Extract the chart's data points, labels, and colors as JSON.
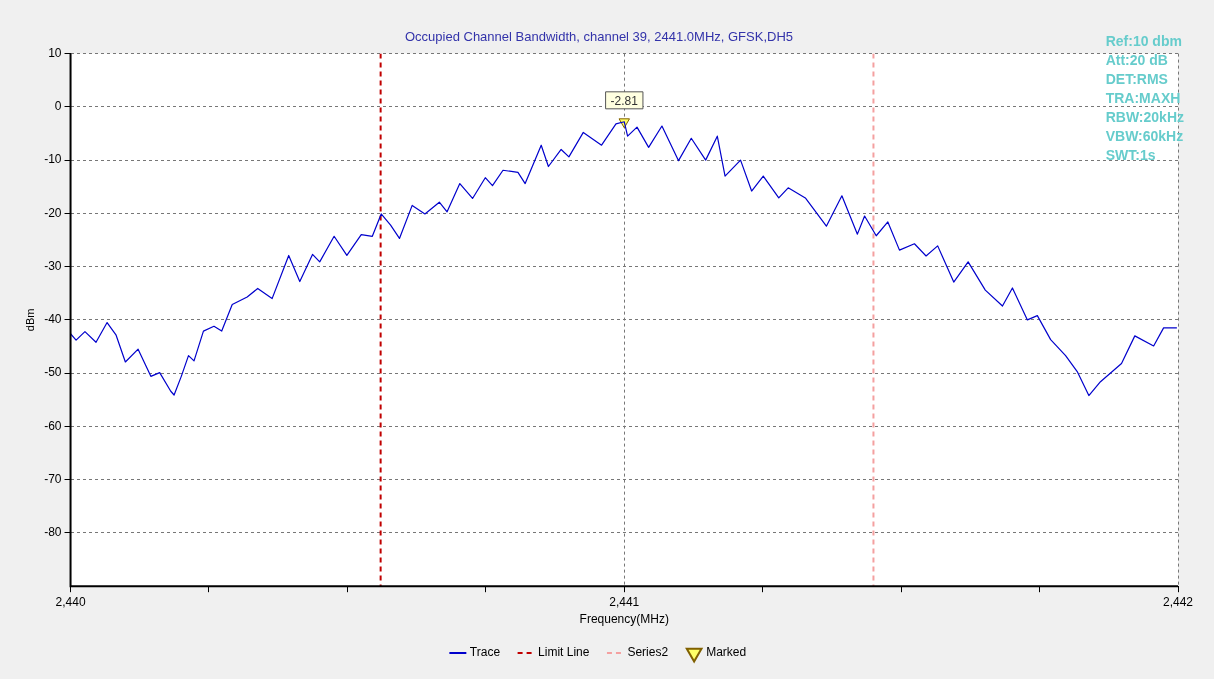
{
  "chart_data": {
    "type": "line",
    "title": "Occupied Channel Bandwidth, channel 39, 2441.0MHz, GFSK,DH5",
    "xlabel": "Frequency(MHz)",
    "ylabel": "dBm",
    "annotations": [
      "Ref:10 dbm",
      "Att:20 dB",
      "DET:RMS",
      "TRA:MAXH",
      "RBW:20kHz",
      "VBW:60kHz",
      "SWT:1s"
    ],
    "xlim": [
      2440,
      2442
    ],
    "ylim": [
      -90,
      10
    ],
    "xticks": [
      {
        "value": 2440,
        "label": "2,440"
      },
      {
        "value": 2440.25,
        "label": null
      },
      {
        "value": 2440.5,
        "label": null
      },
      {
        "value": 2440.75,
        "label": null
      },
      {
        "value": 2441,
        "label": "2,441"
      },
      {
        "value": 2441.25,
        "label": null
      },
      {
        "value": 2441.5,
        "label": null
      },
      {
        "value": 2441.75,
        "label": null
      },
      {
        "value": 2442,
        "label": "2,442"
      }
    ],
    "yticks": [
      10,
      0,
      -10,
      -20,
      -30,
      -40,
      -50,
      -60,
      -70,
      -80
    ],
    "grid": true,
    "legend": "bottom",
    "series": [
      {
        "name": "Trace",
        "type": "line",
        "color": "#0000cc",
        "line_style": "solid",
        "marker": "none",
        "x": [
          2440.0,
          2440.01,
          2440.026,
          2440.046,
          2440.066,
          2440.082,
          2440.099,
          2440.122,
          2440.145,
          2440.161,
          2440.181,
          2440.187,
          2440.2,
          2440.213,
          2440.223,
          2440.24,
          2440.259,
          2440.273,
          2440.292,
          2440.319,
          2440.338,
          2440.364,
          2440.394,
          2440.414,
          2440.437,
          2440.45,
          2440.476,
          2440.499,
          2440.525,
          2440.545,
          2440.561,
          2440.578,
          2440.594,
          2440.617,
          2440.64,
          2440.666,
          2440.68,
          2440.703,
          2440.726,
          2440.749,
          2440.762,
          2440.781,
          2440.808,
          2440.821,
          2440.85,
          2440.863,
          2440.886,
          2440.9,
          2440.926,
          2440.959,
          2440.985,
          2441.0,
          2441.006,
          2441.023,
          2441.044,
          2441.068,
          2441.098,
          2441.121,
          2441.147,
          2441.168,
          2441.182,
          2441.21,
          2441.23,
          2441.251,
          2441.279,
          2441.296,
          2441.327,
          2441.365,
          2441.393,
          2441.421,
          2441.434,
          2441.455,
          2441.476,
          2441.497,
          2441.524,
          2441.545,
          2441.566,
          2441.595,
          2441.621,
          2441.652,
          2441.683,
          2441.701,
          2441.728,
          2441.746,
          2441.77,
          2441.797,
          2441.818,
          2441.839,
          2441.86,
          2441.898,
          2441.922,
          2441.956,
          2441.974,
          2441.998
        ],
        "values": [
          -42.6,
          -43.8,
          -42.2,
          -44.2,
          -40.5,
          -42.8,
          -47.9,
          -45.5,
          -50.6,
          -49.9,
          -53.4,
          -54.1,
          -50.6,
          -46.7,
          -47.7,
          -42.1,
          -41.2,
          -42.1,
          -37.1,
          -35.7,
          -34.1,
          -36.0,
          -27.9,
          -32.8,
          -27.7,
          -29.1,
          -24.3,
          -27.9,
          -24.0,
          -24.3,
          -20.1,
          -22.2,
          -24.7,
          -18.5,
          -20.1,
          -17.9,
          -19.7,
          -14.4,
          -17.2,
          -13.3,
          -14.8,
          -11.9,
          -12.3,
          -14.4,
          -7.2,
          -11.2,
          -8.0,
          -9.4,
          -4.8,
          -7.2,
          -3.2,
          -2.8,
          -5.5,
          -3.8,
          -7.6,
          -3.6,
          -10.1,
          -5.9,
          -10.0,
          -5.5,
          -13.0,
          -10.0,
          -15.8,
          -13.0,
          -17.1,
          -15.2,
          -17.1,
          -22.4,
          -16.7,
          -23.9,
          -20.5,
          -24.2,
          -21.6,
          -26.9,
          -25.7,
          -28.0,
          -26.1,
          -32.9,
          -29.1,
          -34.4,
          -37.4,
          -34.0,
          -40.0,
          -39.2,
          -43.7,
          -46.7,
          -49.7,
          -54.2,
          -51.6,
          -48.2,
          -43.0,
          -44.9,
          -41.5,
          -41.5
        ]
      },
      {
        "name": "Limit Line",
        "type": "line",
        "color": "#c00000",
        "line_style": "dashed",
        "marker": "none",
        "x": [
          2440.56,
          2440.56
        ],
        "values": [
          10,
          -90
        ]
      },
      {
        "name": "Series2",
        "type": "line",
        "color": "#f4a0a0",
        "line_style": "dashed",
        "marker": "none",
        "x": [
          2441.45,
          2441.45
        ],
        "values": [
          10,
          -90
        ]
      },
      {
        "name": "Marked",
        "type": "scatter",
        "color": "#ffff66",
        "marker": "triangle",
        "x": [
          2441.0
        ],
        "values": [
          -2.81
        ],
        "value_labels": [
          "-2.81"
        ]
      }
    ]
  }
}
